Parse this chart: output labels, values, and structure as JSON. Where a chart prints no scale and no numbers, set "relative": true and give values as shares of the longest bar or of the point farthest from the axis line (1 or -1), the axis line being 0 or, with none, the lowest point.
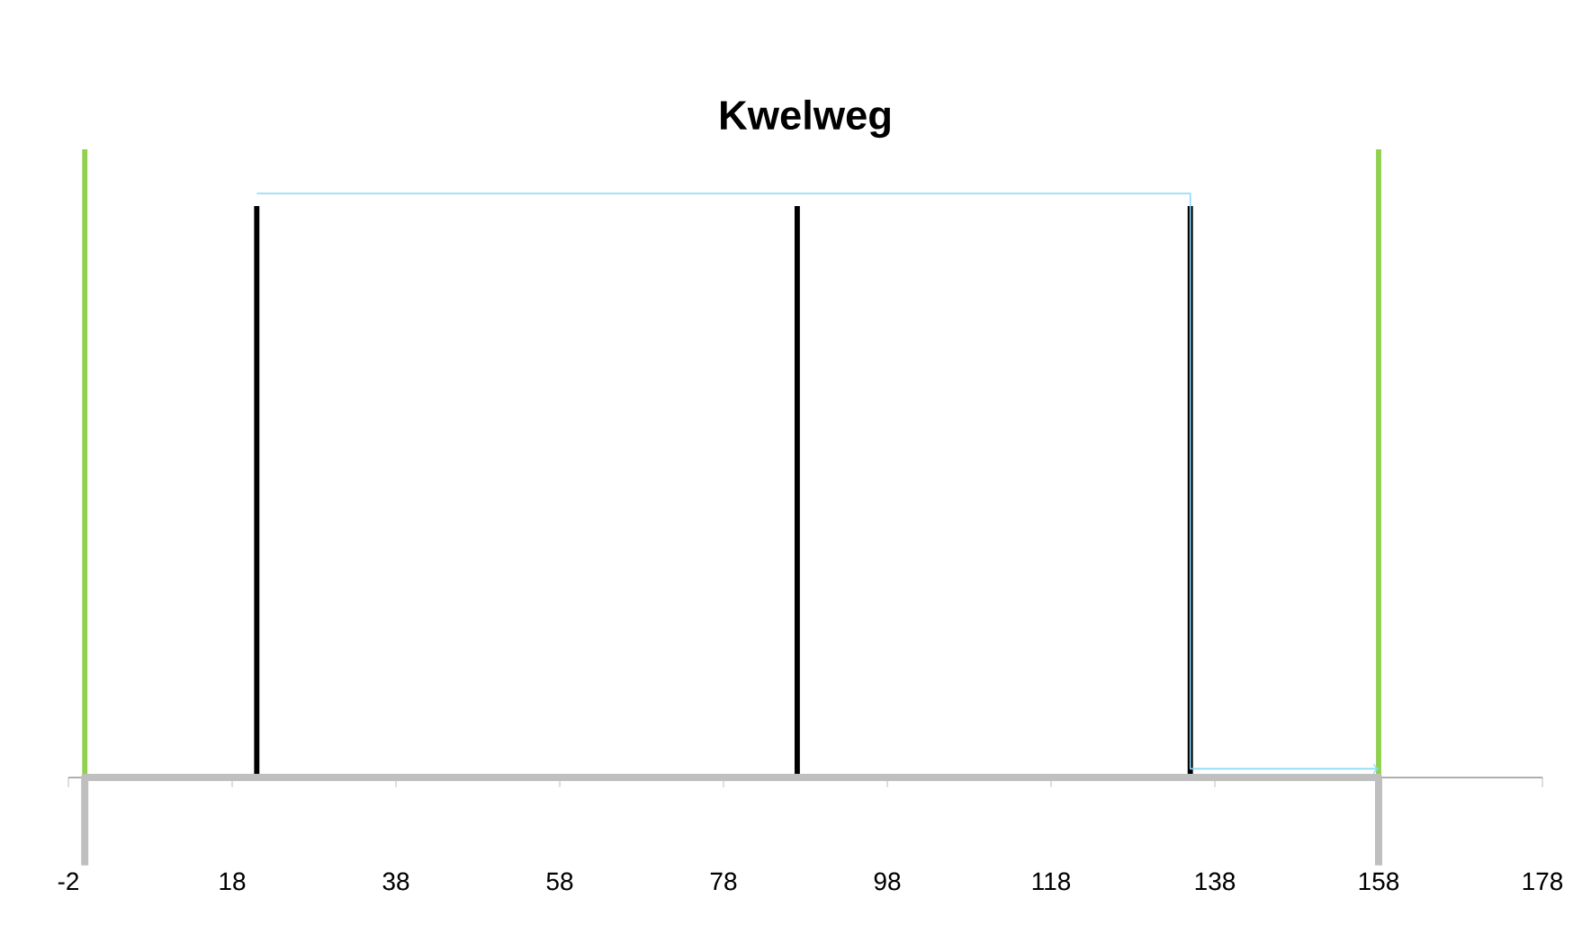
{
  "chart_data": {
    "type": "line",
    "title": "Kwelweg",
    "relative": true,
    "tick_labels": "x",
    "grid": false,
    "xlim": [
      -2,
      178
    ],
    "xticks": [
      -2,
      18,
      38,
      58,
      78,
      98,
      118,
      138,
      158,
      178
    ],
    "series": [
      {
        "color": "#92d050",
        "x": [
          0,
          0
        ],
        "values": [
          0,
          1
        ]
      },
      {
        "color": "#92d050",
        "x": [
          158,
          158
        ],
        "values": [
          0,
          1
        ]
      },
      {
        "color": "#000000",
        "x": [
          21,
          21
        ],
        "values": [
          0,
          0.91
        ]
      },
      {
        "color": "#000000",
        "x": [
          87,
          87
        ],
        "values": [
          0,
          0.91
        ]
      },
      {
        "color": "#000000",
        "x": [
          135,
          135
        ],
        "values": [
          0,
          0.91
        ]
      },
      {
        "color": "#bfbfbf",
        "x": [
          0,
          0,
          158,
          158
        ],
        "values": [
          -0.14,
          0,
          0,
          -0.14
        ]
      },
      {
        "color": "#8ad8f8",
        "x": [
          21,
          135,
          135,
          158
        ],
        "values": [
          0.93,
          0.93,
          0.014,
          0.014
        ]
      }
    ]
  }
}
